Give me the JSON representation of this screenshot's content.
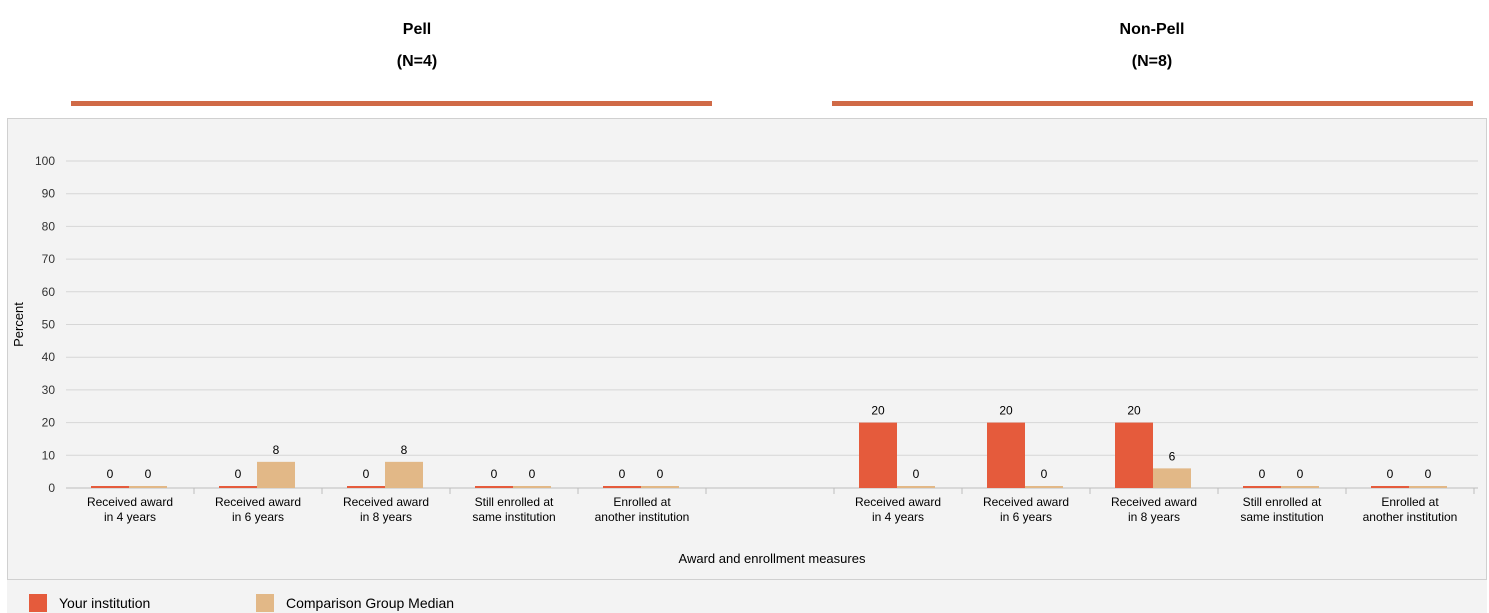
{
  "panels": [
    {
      "title": "Pell",
      "subtitle": "(N=4)"
    },
    {
      "title": "Non-Pell",
      "subtitle": "(N=8)"
    }
  ],
  "legend": {
    "items": [
      {
        "label": "Your institution",
        "color": "#e55b3c"
      },
      {
        "label": "Comparison Group Median",
        "color": "#e2b887"
      }
    ]
  },
  "chart_data": {
    "type": "bar",
    "title": "",
    "xlabel": "Award and enrollment measures",
    "ylabel": "Percent",
    "ylim": [
      0,
      100
    ],
    "yticks": [
      0,
      10,
      20,
      30,
      40,
      50,
      60,
      70,
      80,
      90,
      100
    ],
    "grid": true,
    "legend_position": "bottom",
    "category_labels": [
      [
        "Received award",
        "in 4 years"
      ],
      [
        "Received award",
        "in 6 years"
      ],
      [
        "Received award",
        "in 8 years"
      ],
      [
        "Still enrolled at",
        "same institution"
      ],
      [
        "Enrolled at",
        "another institution"
      ]
    ],
    "groups": [
      {
        "name": "Pell",
        "series": [
          {
            "name": "Your institution",
            "color": "#e55b3c",
            "values": [
              0,
              0,
              0,
              0,
              0
            ]
          },
          {
            "name": "Comparison Group Median",
            "color": "#e2b887",
            "values": [
              0,
              8,
              8,
              0,
              0
            ]
          }
        ]
      },
      {
        "name": "Non-Pell",
        "series": [
          {
            "name": "Your institution",
            "color": "#e55b3c",
            "values": [
              20,
              20,
              20,
              0,
              0
            ]
          },
          {
            "name": "Comparison Group Median",
            "color": "#e2b887",
            "values": [
              0,
              0,
              6,
              0,
              0
            ]
          }
        ]
      }
    ]
  }
}
